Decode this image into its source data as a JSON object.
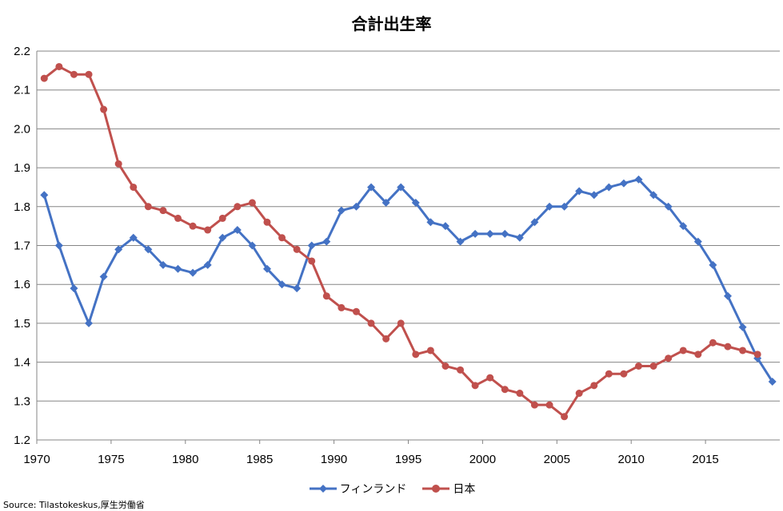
{
  "chart_data": {
    "type": "line",
    "title": "合計出生率",
    "source": "Source: Tilastokeskus,厚生労働省",
    "xlim": [
      1970,
      2019
    ],
    "ylim": [
      1.2,
      2.2
    ],
    "y_ticks": [
      "1.2",
      "1.3",
      "1.4",
      "1.5",
      "1.6",
      "1.7",
      "1.8",
      "1.9",
      "2.0",
      "2.1",
      "2.2"
    ],
    "x_ticks": [
      "1970",
      "1975",
      "1980",
      "1985",
      "1990",
      "1995",
      "2000",
      "2005",
      "2010",
      "2015"
    ],
    "grid": true,
    "legend_position": "bottom",
    "series": [
      {
        "name": "フィンランド",
        "color": "#4472C4",
        "marker": "diamond",
        "x": [
          1970,
          1971,
          1972,
          1973,
          1974,
          1975,
          1976,
          1977,
          1978,
          1979,
          1980,
          1981,
          1982,
          1983,
          1984,
          1985,
          1986,
          1987,
          1988,
          1989,
          1990,
          1991,
          1992,
          1993,
          1994,
          1995,
          1996,
          1997,
          1998,
          1999,
          2000,
          2001,
          2002,
          2003,
          2004,
          2005,
          2006,
          2007,
          2008,
          2009,
          2010,
          2011,
          2012,
          2013,
          2014,
          2015,
          2016,
          2017,
          2018,
          2019
        ],
        "values": [
          1.83,
          1.7,
          1.59,
          1.5,
          1.62,
          1.69,
          1.72,
          1.69,
          1.65,
          1.64,
          1.63,
          1.65,
          1.72,
          1.74,
          1.7,
          1.64,
          1.6,
          1.59,
          1.7,
          1.71,
          1.79,
          1.8,
          1.85,
          1.81,
          1.85,
          1.81,
          1.76,
          1.75,
          1.71,
          1.73,
          1.73,
          1.73,
          1.72,
          1.76,
          1.8,
          1.8,
          1.84,
          1.83,
          1.85,
          1.86,
          1.87,
          1.83,
          1.8,
          1.75,
          1.71,
          1.65,
          1.57,
          1.49,
          1.41,
          1.35
        ]
      },
      {
        "name": "日本",
        "color": "#C0504D",
        "marker": "circle",
        "x": [
          1970,
          1971,
          1972,
          1973,
          1974,
          1975,
          1976,
          1977,
          1978,
          1979,
          1980,
          1981,
          1982,
          1983,
          1984,
          1985,
          1986,
          1987,
          1988,
          1989,
          1990,
          1991,
          1992,
          1993,
          1994,
          1995,
          1996,
          1997,
          1998,
          1999,
          2000,
          2001,
          2002,
          2003,
          2004,
          2005,
          2006,
          2007,
          2008,
          2009,
          2010,
          2011,
          2012,
          2013,
          2014,
          2015,
          2016,
          2017,
          2018
        ],
        "values": [
          2.13,
          2.16,
          2.14,
          2.14,
          2.05,
          1.91,
          1.85,
          1.8,
          1.79,
          1.77,
          1.75,
          1.74,
          1.77,
          1.8,
          1.81,
          1.76,
          1.72,
          1.69,
          1.66,
          1.57,
          1.54,
          1.53,
          1.5,
          1.46,
          1.5,
          1.42,
          1.43,
          1.39,
          1.38,
          1.34,
          1.36,
          1.33,
          1.32,
          1.29,
          1.29,
          1.26,
          1.32,
          1.34,
          1.37,
          1.37,
          1.39,
          1.39,
          1.41,
          1.43,
          1.42,
          1.45,
          1.44,
          1.43,
          1.42
        ]
      }
    ]
  }
}
